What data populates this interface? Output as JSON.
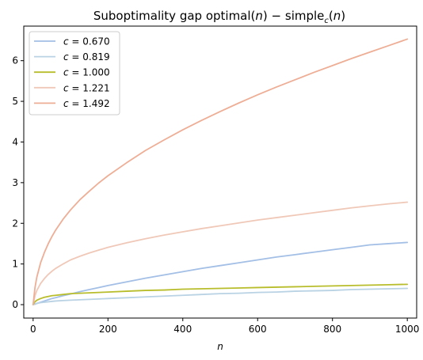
{
  "chart_data": {
    "type": "line",
    "title": "Suboptimality gap optimal(n) − simple_c(n)",
    "title_parts": {
      "prefix": "Suboptimality gap optimal(",
      "n1": "n",
      "mid": ") − simple",
      "sub": "c",
      "open": "(",
      "n2": "n",
      "close": ")"
    },
    "xlabel": "n",
    "ylabel": "",
    "xlim": [
      -25,
      1025
    ],
    "ylim": [
      -0.33,
      6.85
    ],
    "xticks": [
      0,
      200,
      400,
      600,
      800,
      1000
    ],
    "yticks": [
      0,
      1,
      2,
      3,
      4,
      5,
      6
    ],
    "grid": false,
    "legend_placement": "top-left",
    "legend_var": "c",
    "x": [
      0,
      5,
      10,
      20,
      30,
      40,
      50,
      60,
      80,
      100,
      125,
      150,
      175,
      200,
      250,
      300,
      350,
      400,
      450,
      500,
      550,
      600,
      650,
      700,
      750,
      800,
      850,
      900,
      950,
      1000
    ],
    "series": [
      {
        "name": "c = 0.670",
        "label_value": "0.670",
        "color": "#a3bfe6",
        "values": [
          0,
          0.01,
          0.03,
          0.06,
          0.09,
          0.12,
          0.15,
          0.17,
          0.22,
          0.26,
          0.32,
          0.37,
          0.42,
          0.47,
          0.56,
          0.65,
          0.73,
          0.81,
          0.89,
          0.96,
          1.03,
          1.1,
          1.17,
          1.23,
          1.29,
          1.35,
          1.41,
          1.47,
          1.5,
          1.53
        ]
      },
      {
        "name": "c = 0.819",
        "label_value": "0.819",
        "color": "#b9d2e4",
        "values": [
          0,
          0.02,
          0.03,
          0.05,
          0.06,
          0.07,
          0.08,
          0.09,
          0.1,
          0.11,
          0.12,
          0.13,
          0.14,
          0.15,
          0.17,
          0.19,
          0.21,
          0.23,
          0.25,
          0.27,
          0.28,
          0.3,
          0.31,
          0.33,
          0.34,
          0.35,
          0.37,
          0.38,
          0.39,
          0.4
        ]
      },
      {
        "name": "c = 1.000",
        "label_value": "1.000",
        "color": "#b8bd2c",
        "values": [
          0,
          0.07,
          0.11,
          0.15,
          0.18,
          0.2,
          0.22,
          0.23,
          0.25,
          0.27,
          0.28,
          0.29,
          0.3,
          0.31,
          0.33,
          0.35,
          0.36,
          0.38,
          0.39,
          0.4,
          0.41,
          0.42,
          0.43,
          0.44,
          0.45,
          0.46,
          0.47,
          0.48,
          0.49,
          0.5
        ]
      },
      {
        "name": "c = 1.221",
        "label_value": "1.221",
        "color": "#f0c8b8",
        "values": [
          0,
          0.22,
          0.35,
          0.52,
          0.64,
          0.74,
          0.82,
          0.89,
          1.0,
          1.1,
          1.19,
          1.27,
          1.34,
          1.41,
          1.52,
          1.62,
          1.71,
          1.79,
          1.87,
          1.94,
          2.01,
          2.08,
          2.14,
          2.2,
          2.26,
          2.32,
          2.38,
          2.43,
          2.48,
          2.52
        ]
      },
      {
        "name": "c = 1.492",
        "label_value": "1.492",
        "color": "#eeae96",
        "values": [
          0,
          0.42,
          0.68,
          1.03,
          1.28,
          1.49,
          1.67,
          1.83,
          2.1,
          2.33,
          2.58,
          2.79,
          2.99,
          3.17,
          3.49,
          3.79,
          4.05,
          4.3,
          4.53,
          4.75,
          4.96,
          5.16,
          5.35,
          5.53,
          5.71,
          5.88,
          6.05,
          6.21,
          6.37,
          6.53
        ]
      }
    ]
  }
}
